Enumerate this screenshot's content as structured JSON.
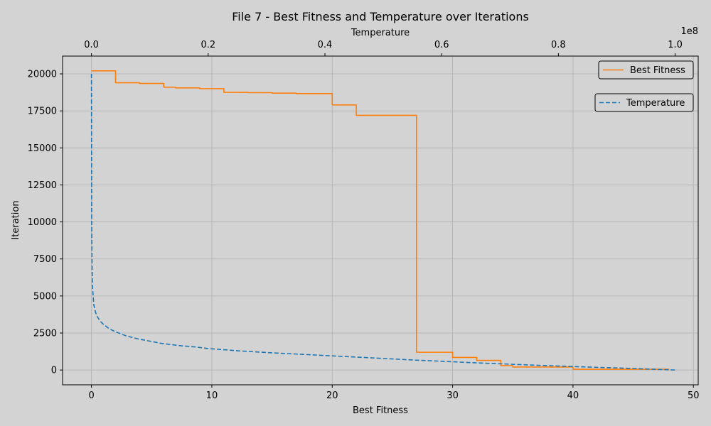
{
  "chart_data": {
    "type": "line",
    "title": "File 7 - Best Fitness and Temperature over Iterations",
    "xlabel": "Best Fitness",
    "ylabel": "Iteration",
    "top_xlabel": "Temperature",
    "top_x_offset_label": "1e8",
    "xlim": [
      -2.4,
      50.4
    ],
    "ylim": [
      -1000,
      21200
    ],
    "top_xlim": [
      -0.0495,
      1.0395
    ],
    "x_ticks": [
      0,
      10,
      20,
      30,
      40,
      50
    ],
    "y_ticks": [
      0,
      2500,
      5000,
      7500,
      10000,
      12500,
      15000,
      17500,
      20000
    ],
    "top_x_ticks": [
      0.0,
      0.2,
      0.4,
      0.6,
      0.8,
      1.0
    ],
    "x_tick_labels": [
      "0",
      "10",
      "20",
      "30",
      "40",
      "50"
    ],
    "y_tick_labels": [
      "0",
      "2500",
      "5000",
      "7500",
      "10000",
      "12500",
      "15000",
      "17500",
      "20000"
    ],
    "top_x_tick_labels": [
      "0.0",
      "0.2",
      "0.4",
      "0.6",
      "0.8",
      "1.0"
    ],
    "grid": true,
    "legend_placement": "top-right",
    "series": [
      {
        "name": "Best Fitness",
        "color": "#ff7f0e",
        "style": "solid",
        "axis": "bottom",
        "x": [
          0,
          2,
          2,
          4,
          4,
          6,
          6,
          7,
          7,
          9,
          9,
          11,
          11,
          13,
          13,
          15,
          15,
          17,
          17,
          20,
          20,
          22,
          22,
          27,
          27,
          30,
          30,
          32,
          32,
          34,
          34,
          35,
          35,
          40,
          40,
          48
        ],
        "y": [
          20200,
          20200,
          19400,
          19400,
          19350,
          19350,
          19100,
          19100,
          19050,
          19050,
          19000,
          19000,
          18750,
          18750,
          18730,
          18730,
          18700,
          18700,
          18670,
          18670,
          17900,
          17900,
          17200,
          17200,
          1200,
          1200,
          850,
          850,
          650,
          650,
          300,
          300,
          200,
          200,
          50,
          50
        ]
      },
      {
        "name": "Temperature",
        "color": "#1f77b4",
        "style": "dashed",
        "axis": "top",
        "x": [
          0.0,
          0.0004,
          0.001,
          0.002,
          0.004,
          0.007,
          0.01,
          0.015,
          0.02,
          0.03,
          0.04,
          0.05,
          0.06,
          0.08,
          0.1,
          0.12,
          0.15,
          0.18,
          0.2,
          0.25,
          0.3,
          0.35,
          0.4,
          0.45,
          0.5,
          0.55,
          0.6,
          0.65,
          0.7,
          0.75,
          0.8,
          0.85,
          0.9,
          0.95,
          1.0
        ],
        "y": [
          20000,
          10000,
          7000,
          5500,
          4400,
          3900,
          3600,
          3300,
          3100,
          2800,
          2600,
          2450,
          2300,
          2100,
          1950,
          1800,
          1650,
          1550,
          1450,
          1300,
          1180,
          1080,
          980,
          880,
          780,
          680,
          590,
          500,
          420,
          340,
          270,
          200,
          140,
          70,
          0
        ]
      }
    ]
  }
}
